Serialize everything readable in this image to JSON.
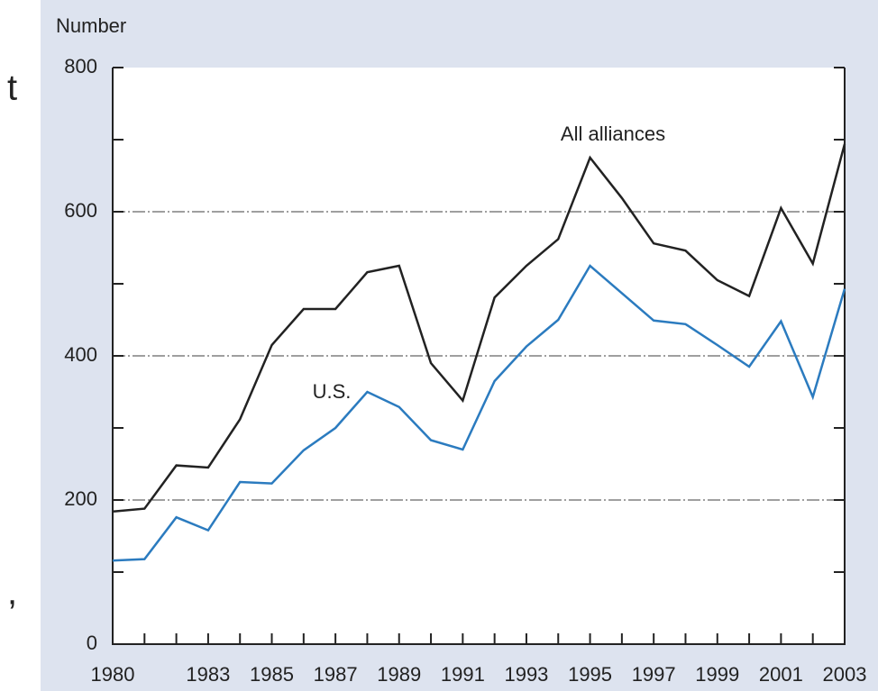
{
  "cropped_text": [
    "t",
    ","
  ],
  "chart_data": {
    "type": "line",
    "ylabel": "Number",
    "x": [
      1980,
      1981,
      1982,
      1983,
      1984,
      1985,
      1986,
      1987,
      1988,
      1989,
      1990,
      1991,
      1992,
      1993,
      1994,
      1995,
      1996,
      1997,
      1998,
      1999,
      2000,
      2001,
      2002,
      2003
    ],
    "series": [
      {
        "name": "All alliances",
        "color": "#222222",
        "values": [
          184,
          188,
          248,
          245,
          312,
          415,
          465,
          465,
          516,
          525,
          390,
          338,
          481,
          525,
          562,
          675,
          619,
          556,
          546,
          505,
          483,
          605,
          528,
          694
        ]
      },
      {
        "name": "U.S.",
        "color": "#2b7bbf",
        "values": [
          116,
          118,
          176,
          158,
          225,
          223,
          269,
          300,
          350,
          329,
          283,
          270,
          365,
          413,
          450,
          525,
          487,
          449,
          444,
          415,
          385,
          448,
          343,
          493
        ]
      }
    ],
    "xlim": [
      1980,
      2003
    ],
    "xticks": [
      1980,
      1983,
      1985,
      1987,
      1989,
      1991,
      1993,
      1995,
      1997,
      1999,
      2001,
      2003
    ],
    "xminorticks": [
      1980,
      1981,
      1982,
      1983,
      1984,
      1985,
      1986,
      1987,
      1988,
      1989,
      1990,
      1991,
      1992,
      1993,
      1994,
      1995,
      1996,
      1997,
      1998,
      1999,
      2000,
      2001,
      2002,
      2003
    ],
    "ylim": [
      0,
      800
    ],
    "yticks": [
      0,
      200,
      400,
      600,
      800
    ],
    "yminorticks": [
      100,
      300,
      500,
      700
    ],
    "grid": true
  }
}
